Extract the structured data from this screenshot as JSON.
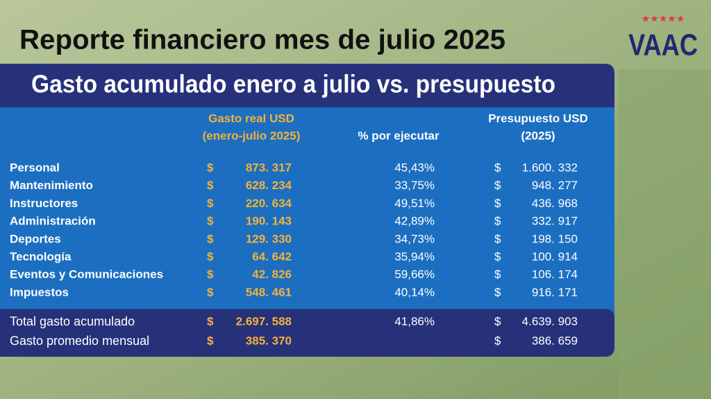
{
  "title": "Reporte financiero mes de julio 2025",
  "logo": "VAAC",
  "subtitle": "Gasto acumulado enero a julio vs. presupuesto",
  "currency": "$",
  "table": {
    "headers": {
      "spent": [
        "Gasto real USD",
        "(enero-julio 2025)"
      ],
      "pct": "% por ejecutar",
      "budget": [
        "Presupuesto USD",
        "(2025)"
      ]
    },
    "rows": [
      {
        "label": "Personal",
        "spent": "873. 317",
        "pct": "45,43%",
        "budget": "1.600. 332"
      },
      {
        "label": "Mantenimiento",
        "spent": "628. 234",
        "pct": "33,75%",
        "budget": "948. 277"
      },
      {
        "label": "Instructores",
        "spent": "220. 634",
        "pct": "49,51%",
        "budget": "436. 968"
      },
      {
        "label": "Administración",
        "spent": "190. 143",
        "pct": "42,89%",
        "budget": "332. 917"
      },
      {
        "label": "Deportes",
        "spent": "129. 330",
        "pct": "34,73%",
        "budget": "198. 150"
      },
      {
        "label": "Tecnología",
        "spent": "64. 642",
        "pct": "35,94%",
        "budget": "100. 914"
      },
      {
        "label": "Eventos y Comunicaciones",
        "spent": "42. 826",
        "pct": "59,66%",
        "budget": "106. 174"
      },
      {
        "label": "Impuestos",
        "spent": "548. 461",
        "pct": "40,14%",
        "budget": "916. 171"
      }
    ],
    "totals": [
      {
        "label": "Total gasto acumulado",
        "spent": "2.697. 588",
        "pct": "41,86%",
        "budget": "4.639. 903"
      },
      {
        "label": "Gasto promedio mensual",
        "spent": "385. 370",
        "budget": "386. 659"
      }
    ]
  }
}
